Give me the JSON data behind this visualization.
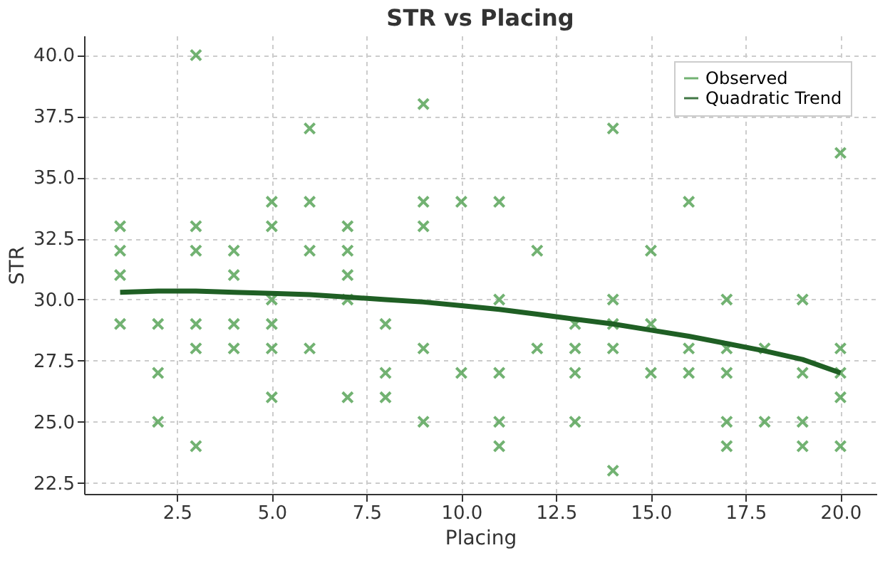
{
  "chart_data": {
    "type": "scatter",
    "title": "STR vs Placing",
    "xlabel": "Placing",
    "ylabel": "STR",
    "xlim": [
      0.05,
      20.95
    ],
    "xticks": [
      {
        "value": 2.5,
        "label": "2.5"
      },
      {
        "value": 5,
        "label": "5.0"
      },
      {
        "value": 7.5,
        "label": "7.5"
      },
      {
        "value": 10,
        "label": "10.0"
      },
      {
        "value": 12.5,
        "label": "12.5"
      },
      {
        "value": 15,
        "label": "15.0"
      },
      {
        "value": 17.5,
        "label": "17.5"
      },
      {
        "value": 20,
        "label": "20.0"
      }
    ],
    "ylim": [
      22.05,
      40.8
    ],
    "yticks": [
      {
        "value": 22.5,
        "label": "22.5"
      },
      {
        "value": 25,
        "label": "25.0"
      },
      {
        "value": 27.5,
        "label": "27.5"
      },
      {
        "value": 30,
        "label": "30.0"
      },
      {
        "value": 32.5,
        "label": "32.5"
      },
      {
        "value": 35,
        "label": "35.0"
      },
      {
        "value": 37.5,
        "label": "37.5"
      },
      {
        "value": 40,
        "label": "40.0"
      }
    ],
    "grid": true,
    "legend": "top right",
    "marker": "cross",
    "series": [
      {
        "name": "Observed",
        "color": "#5aa55a",
        "x": [
          1,
          1,
          1,
          1,
          2,
          2,
          2,
          3,
          3,
          3,
          3,
          3,
          3,
          4,
          4,
          4,
          4,
          5,
          5,
          5,
          5,
          5,
          5,
          6,
          6,
          6,
          6,
          7,
          7,
          7,
          7,
          7,
          8,
          8,
          8,
          9,
          9,
          9,
          9,
          9,
          10,
          10,
          11,
          11,
          11,
          11,
          11,
          12,
          12,
          13,
          13,
          13,
          13,
          14,
          14,
          14,
          14,
          14,
          15,
          15,
          15,
          16,
          16,
          16,
          17,
          17,
          17,
          17,
          17,
          18,
          18,
          19,
          19,
          19,
          19,
          20,
          20,
          20,
          20,
          20
        ],
        "values": [
          33,
          32,
          31,
          29,
          29,
          27,
          25,
          40,
          33,
          32,
          29,
          28,
          24,
          32,
          31,
          29,
          28,
          34,
          33,
          30,
          29,
          28,
          26,
          37,
          34,
          32,
          28,
          33,
          32,
          31,
          30,
          26,
          29,
          27,
          26,
          38,
          34,
          33,
          28,
          25,
          34,
          27,
          34,
          30,
          27,
          25,
          24,
          32,
          28,
          29,
          28,
          27,
          25,
          37,
          30,
          29,
          28,
          23,
          32,
          29,
          27,
          34,
          28,
          27,
          30,
          28,
          27,
          25,
          24,
          28,
          25,
          30,
          27,
          25,
          24,
          36,
          28,
          27,
          26,
          24
        ]
      },
      {
        "name": "Quadratic Trend",
        "type": "line",
        "color": "#1f5f24",
        "marker": "none",
        "x": [
          1,
          2,
          3,
          4,
          5,
          6,
          7,
          8,
          9,
          10,
          11,
          12,
          13,
          14,
          15,
          16,
          17,
          18,
          19,
          20
        ],
        "values": [
          30.3,
          30.35,
          30.35,
          30.3,
          30.25,
          30.2,
          30.1,
          30.0,
          29.9,
          29.75,
          29.6,
          29.4,
          29.2,
          29.0,
          28.75,
          28.5,
          28.2,
          27.9,
          27.55,
          27.0
        ]
      }
    ]
  }
}
